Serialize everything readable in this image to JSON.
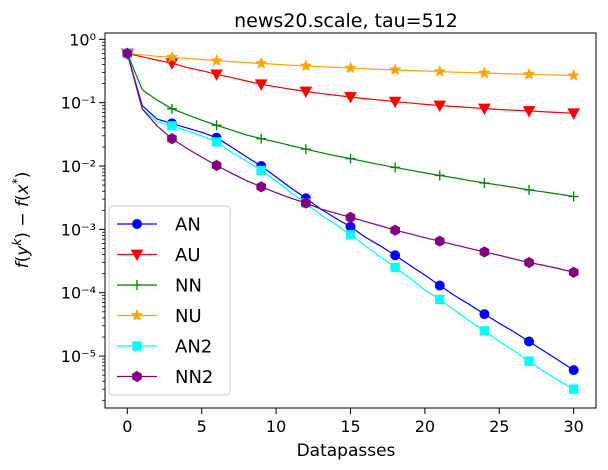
{
  "chart_data": {
    "type": "line",
    "title": "news20.scale, tau=512",
    "xlabel": "Datapasses",
    "ylabel": "f(y^k) - f(x^*)",
    "yscale": "log",
    "xlim": [
      -1.5,
      31.5
    ],
    "ylim_log10": [
      -5.82,
      0.1
    ],
    "xticks": [
      0,
      5,
      10,
      15,
      20,
      25,
      30
    ],
    "xtick_labels": [
      "0",
      "5",
      "10",
      "15",
      "20",
      "25",
      "30"
    ],
    "yticks_log10": [
      0,
      -1,
      -2,
      -3,
      -4,
      -5
    ],
    "ytick_labels": [
      "10⁰",
      "10⁻¹",
      "10⁻²",
      "10⁻³",
      "10⁻⁴",
      "10⁻⁵"
    ],
    "legend_position": "lower-left",
    "series": [
      {
        "name": "AN",
        "color": "#0000ff",
        "marker": "circle",
        "x": [
          0,
          1,
          2,
          3,
          4,
          5,
          6,
          7,
          8,
          9,
          10,
          11,
          12,
          13,
          14,
          15,
          16,
          17,
          18,
          19,
          20,
          21,
          22,
          23,
          24,
          25,
          26,
          27,
          28,
          29,
          30
        ],
        "y": [
          0.6,
          0.09,
          0.055,
          0.047,
          0.04,
          0.034,
          0.028,
          0.02,
          0.014,
          0.01,
          0.0067,
          0.0045,
          0.0031,
          0.0021,
          0.0015,
          0.0011,
          0.00075,
          0.00055,
          0.00039,
          0.00027,
          0.00019,
          0.00013,
          9e-05,
          6.5e-05,
          4.6e-05,
          3.3e-05,
          2.4e-05,
          1.7e-05,
          1.2e-05,
          8.5e-06,
          6e-06
        ],
        "marker_every": [
          0,
          3,
          6,
          9,
          12,
          15,
          18,
          21,
          24,
          27,
          30
        ]
      },
      {
        "name": "AU",
        "color": "#ff0000",
        "marker": "triangle-down",
        "x": [
          0,
          1,
          2,
          3,
          4,
          5,
          6,
          7,
          8,
          9,
          10,
          11,
          12,
          13,
          14,
          15,
          16,
          17,
          18,
          19,
          20,
          21,
          22,
          23,
          24,
          25,
          26,
          27,
          28,
          29,
          30
        ],
        "y": [
          0.6,
          0.53,
          0.47,
          0.42,
          0.36,
          0.32,
          0.28,
          0.25,
          0.22,
          0.195,
          0.178,
          0.163,
          0.15,
          0.14,
          0.131,
          0.123,
          0.116,
          0.11,
          0.104,
          0.099,
          0.094,
          0.09,
          0.087,
          0.084,
          0.081,
          0.078,
          0.076,
          0.074,
          0.072,
          0.07,
          0.068
        ],
        "marker_every": [
          0,
          3,
          6,
          9,
          12,
          15,
          18,
          21,
          24,
          27,
          30
        ]
      },
      {
        "name": "NN",
        "color": "#008000",
        "marker": "plus",
        "x": [
          0,
          1,
          2,
          3,
          4,
          5,
          6,
          7,
          8,
          9,
          10,
          11,
          12,
          13,
          14,
          15,
          16,
          17,
          18,
          19,
          20,
          21,
          22,
          23,
          24,
          25,
          26,
          27,
          28,
          29,
          30
        ],
        "y": [
          0.6,
          0.16,
          0.11,
          0.08,
          0.065,
          0.053,
          0.044,
          0.037,
          0.031,
          0.027,
          0.024,
          0.021,
          0.0185,
          0.0163,
          0.0145,
          0.0131,
          0.0117,
          0.0105,
          0.0095,
          0.0086,
          0.0078,
          0.0071,
          0.0065,
          0.0059,
          0.0054,
          0.005,
          0.0046,
          0.0042,
          0.0039,
          0.0036,
          0.0033
        ],
        "marker_every": [
          0,
          3,
          6,
          9,
          12,
          15,
          18,
          21,
          24,
          27,
          30
        ]
      },
      {
        "name": "NU",
        "color": "#ffa500",
        "marker": "star",
        "x": [
          0,
          1,
          2,
          3,
          4,
          5,
          6,
          7,
          8,
          9,
          10,
          11,
          12,
          13,
          14,
          15,
          16,
          17,
          18,
          19,
          20,
          21,
          22,
          23,
          24,
          25,
          26,
          27,
          28,
          29,
          30
        ],
        "y": [
          0.6,
          0.57,
          0.54,
          0.52,
          0.5,
          0.48,
          0.46,
          0.445,
          0.43,
          0.415,
          0.403,
          0.391,
          0.38,
          0.37,
          0.361,
          0.352,
          0.344,
          0.336,
          0.329,
          0.322,
          0.316,
          0.31,
          0.304,
          0.299,
          0.294,
          0.289,
          0.284,
          0.28,
          0.276,
          0.272,
          0.268
        ],
        "marker_every": [
          0,
          3,
          6,
          9,
          12,
          15,
          18,
          21,
          24,
          27,
          30
        ]
      },
      {
        "name": "AN2",
        "color": "#00ffff",
        "marker": "square",
        "x": [
          0,
          1,
          2,
          3,
          4,
          5,
          6,
          7,
          8,
          9,
          10,
          11,
          12,
          13,
          14,
          15,
          16,
          17,
          18,
          19,
          20,
          21,
          22,
          23,
          24,
          25,
          26,
          27,
          28,
          29,
          30
        ],
        "y": [
          0.6,
          0.08,
          0.05,
          0.043,
          0.036,
          0.03,
          0.024,
          0.0165,
          0.012,
          0.0085,
          0.0058,
          0.0038,
          0.0026,
          0.0017,
          0.0012,
          0.00082,
          0.00055,
          0.00037,
          0.00025,
          0.00017,
          0.00011,
          7.8e-05,
          5.3e-05,
          3.6e-05,
          2.5e-05,
          1.7e-05,
          1.2e-05,
          8.3e-06,
          5.7e-06,
          4.1e-06,
          3e-06
        ],
        "marker_every": [
          0,
          3,
          6,
          9,
          12,
          15,
          18,
          21,
          24,
          27,
          30
        ]
      },
      {
        "name": "NN2",
        "color": "#800080",
        "marker": "hexagon",
        "x": [
          0,
          1,
          2,
          3,
          4,
          5,
          6,
          7,
          8,
          9,
          10,
          11,
          12,
          13,
          14,
          15,
          16,
          17,
          18,
          19,
          20,
          21,
          22,
          23,
          24,
          25,
          26,
          27,
          28,
          29,
          30
        ],
        "y": [
          0.6,
          0.08,
          0.043,
          0.027,
          0.019,
          0.0138,
          0.0102,
          0.0077,
          0.0059,
          0.0047,
          0.0038,
          0.0031,
          0.0026,
          0.0021,
          0.0018,
          0.00155,
          0.00133,
          0.00114,
          0.00097,
          0.00085,
          0.00074,
          0.00065,
          0.00057,
          0.0005,
          0.00044,
          0.00039,
          0.00034,
          0.0003,
          0.00027,
          0.00024,
          0.00021
        ],
        "marker_every": [
          0,
          3,
          6,
          9,
          12,
          15,
          18,
          21,
          24,
          27,
          30
        ]
      }
    ]
  }
}
